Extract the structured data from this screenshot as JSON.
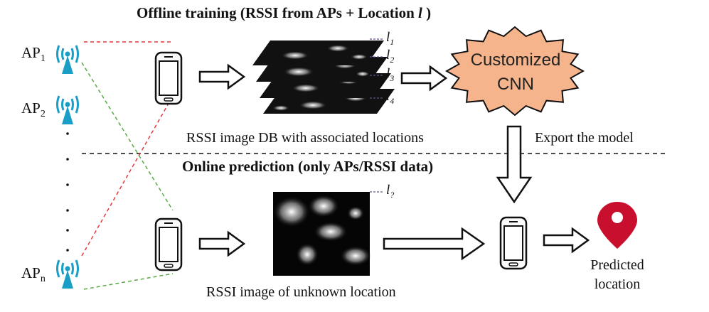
{
  "titles": {
    "offline": "Offline training (RSSI from APs + Location ",
    "offline_var": "l",
    "offline_end": ")",
    "online": "Online prediction (only APs/RSSI data)"
  },
  "access_points": [
    {
      "base": "AP",
      "sub": "1"
    },
    {
      "base": "AP",
      "sub": "2"
    },
    {
      "base": "AP",
      "sub": "n"
    }
  ],
  "location_labels": [
    {
      "base": "l",
      "sub": "1"
    },
    {
      "base": "l",
      "sub": "2"
    },
    {
      "base": "l",
      "sub": "3"
    },
    {
      "base": "l",
      "sub": "4"
    }
  ],
  "unknown_label": {
    "base": "l",
    "sub": "?"
  },
  "cnn": {
    "line1": "Customized",
    "line2": "CNN",
    "fill": "#f6b48c"
  },
  "captions": {
    "db": "RSSI image DB with associated locations",
    "export": "Export the model",
    "unknown": "RSSI image of unknown location",
    "predicted_1": "Predicted",
    "predicted_2": "location"
  },
  "colors": {
    "wifi": "#1b9ec6",
    "red_line": "#e23b3b",
    "green_line": "#5aa845",
    "pin": "#c8102e"
  }
}
